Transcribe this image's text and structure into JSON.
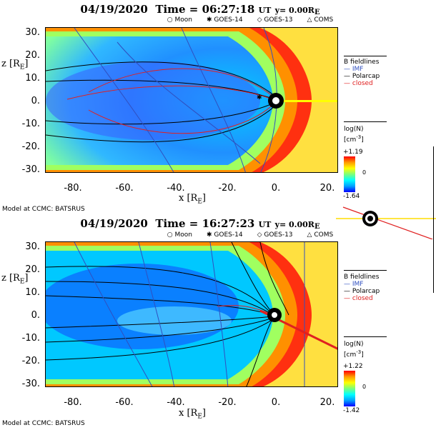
{
  "panels": [
    {
      "title": {
        "date": "04/19/2020",
        "time_word": "Time =",
        "time": "06:27:18",
        "ut": "UT",
        "y": "y= 0.00R",
        "y_sub": "E"
      },
      "legend": {
        "moon": "Moon",
        "goes14": "GOES-14",
        "goes13": "GOES-13",
        "coms": "COMS"
      },
      "fieldlines": {
        "title": "B fieldlines",
        "imf": "IMF",
        "polarcap": "Polarcap",
        "closed": "closed"
      },
      "colorbar": {
        "title": "log(N)",
        "unit": "[cm",
        "unit_exp": "-3",
        "unit_end": "]",
        "max": "+1.19",
        "mid": "0",
        "min": "-1.64"
      },
      "footer": "Model at CCMC: BATSRUS"
    },
    {
      "title": {
        "date": "04/19/2020",
        "time_word": "Time =",
        "time": "16:27:23",
        "ut": "UT",
        "y": "y= 0.00R",
        "y_sub": "E"
      },
      "legend": {
        "moon": "Moon",
        "goes14": "GOES-14",
        "goes13": "GOES-13",
        "coms": "COMS"
      },
      "fieldlines": {
        "title": "B fieldlines",
        "imf": "IMF",
        "polarcap": "Polarcap",
        "closed": "closed"
      },
      "colorbar": {
        "title": "log(N)",
        "unit": "[cm",
        "unit_exp": "-3",
        "unit_end": "]",
        "max": "+1.22",
        "mid": "0",
        "min": "-1.42"
      },
      "footer": "Model at CCMC: BATSRUS"
    }
  ],
  "axes": {
    "ylabel": "z [R",
    "ylabel_sub": "E",
    "ylabel_end": "]",
    "xlabel": "x [R",
    "xlabel_sub": "E",
    "xlabel_end": "]",
    "yticks": [
      "30.",
      "20.",
      "10.",
      "0.",
      "-10.",
      "-20.",
      "-30."
    ],
    "xticks": [
      "-80.",
      "-60.",
      "-40.",
      "-20.",
      "0.",
      "20."
    ]
  },
  "chart_data": [
    {
      "type": "heatmap",
      "quantity": "log(N)",
      "xlim": [
        -90,
        25
      ],
      "ylim": [
        -32,
        32
      ],
      "colorbar_range": [
        -1.64,
        1.19
      ],
      "colors": {
        "imf": "#3050c0",
        "polarcap": "#000000",
        "closed": "#e02020"
      }
    },
    {
      "type": "heatmap",
      "quantity": "log(N)",
      "xlim": [
        -90,
        25
      ],
      "ylim": [
        -32,
        32
      ],
      "colorbar_range": [
        -1.42,
        1.22
      ],
      "colors": {
        "imf": "#3050c0",
        "polarcap": "#000000",
        "closed": "#e02020"
      }
    }
  ]
}
